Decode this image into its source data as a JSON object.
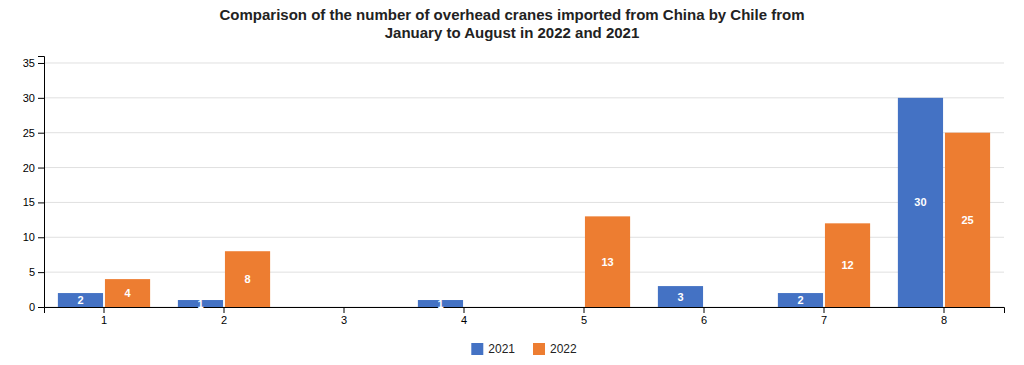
{
  "chart_data": {
    "type": "bar",
    "title": "Comparison of the number of overhead cranes imported from China by Chile from\nJanuary to August in 2022 and 2021",
    "categories": [
      1,
      2,
      3,
      4,
      5,
      6,
      7,
      8
    ],
    "series": [
      {
        "name": "2021",
        "color": "#4472C4",
        "values": [
          2,
          1,
          0,
          1,
          0,
          3,
          2,
          30
        ]
      },
      {
        "name": "2022",
        "color": "#ED7D31",
        "values": [
          4,
          8,
          0,
          0,
          13,
          0,
          12,
          25
        ]
      }
    ],
    "ylim": [
      0,
      36
    ],
    "yticks": [
      0,
      5,
      10,
      15,
      20,
      25,
      30,
      35
    ],
    "grid": true,
    "legend": "bottom",
    "data_labels": true
  }
}
